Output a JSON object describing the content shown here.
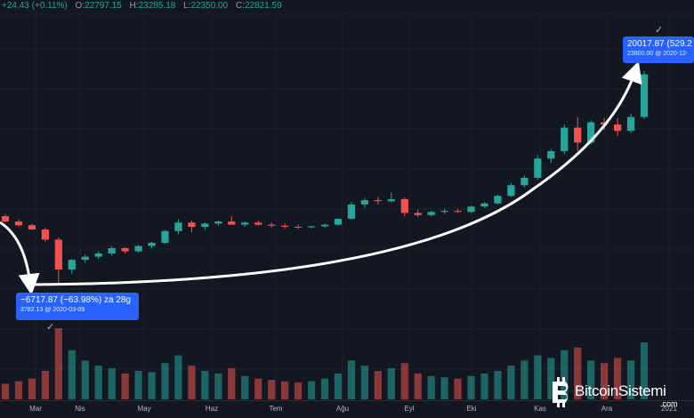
{
  "header": {
    "change": "+24.43 (+0.11%)",
    "open_label": "O:",
    "open": "22797.15",
    "high_label": "H:",
    "high": "23285.18",
    "low_label": "L:",
    "low": "22350.00",
    "close_label": "C:",
    "close": "22821.59"
  },
  "callouts": {
    "start_line1": "−6717.87 (−63.98%) za 28g",
    "start_line2": "3782.13 @ 2020-03-09",
    "end_line1": "20017.87 (529.2",
    "end_line2": "23800.00 @ 2020-12-"
  },
  "x_axis": {
    "labels": [
      "Mar",
      "Nis",
      "May",
      "Haz",
      "Tem",
      "Ağu",
      "Eyl",
      "Eki",
      "Kas",
      "Ara",
      "2021"
    ]
  },
  "watermark": {
    "name": "BitcoinSistemi",
    "tld": ".com"
  },
  "colors": {
    "background": "#131722",
    "up": "#26a69a",
    "down": "#ef5350",
    "callout": "#2962ff",
    "arrow": "#ffffff"
  },
  "chart_data": {
    "type": "candlestick",
    "title": "",
    "xlabel": "",
    "ylabel": "",
    "x_range": [
      "2020-02",
      "2021-01"
    ],
    "y_range": [
      3500,
      24500
    ],
    "grid": true,
    "series": [
      {
        "values": [
          [
            10200,
            10400,
            9600,
            9700
          ],
          [
            9700,
            9900,
            9200,
            9350
          ],
          [
            9350,
            9500,
            8900,
            8950
          ],
          [
            8950,
            9100,
            7800,
            8000
          ],
          [
            8000,
            8200,
            3782,
            5200
          ],
          [
            5200,
            6200,
            4800,
            6100
          ],
          [
            6100,
            6600,
            5800,
            6400
          ],
          [
            6400,
            6900,
            6200,
            6700
          ],
          [
            6700,
            7400,
            6500,
            7200
          ],
          [
            7200,
            7300,
            6700,
            6900
          ],
          [
            6900,
            7500,
            6800,
            7400
          ],
          [
            7400,
            7800,
            7200,
            7700
          ],
          [
            7700,
            8900,
            7600,
            8800
          ],
          [
            8800,
            9900,
            8500,
            9600
          ],
          [
            9600,
            9800,
            8700,
            9200
          ],
          [
            9200,
            9600,
            8900,
            9500
          ],
          [
            9500,
            9800,
            9300,
            9700
          ],
          [
            9700,
            10200,
            9500,
            9400
          ],
          [
            9400,
            9700,
            9200,
            9600
          ],
          [
            9600,
            9800,
            9300,
            9400
          ],
          [
            9400,
            9600,
            9100,
            9300
          ],
          [
            9300,
            9500,
            9000,
            9200
          ],
          [
            9200,
            9400,
            9000,
            9150
          ],
          [
            9150,
            9300,
            9050,
            9250
          ],
          [
            9250,
            9500,
            9100,
            9400
          ],
          [
            9400,
            10000,
            9300,
            9950
          ],
          [
            9950,
            11500,
            9900,
            11300
          ],
          [
            11300,
            11900,
            11000,
            11700
          ],
          [
            11700,
            12000,
            11300,
            11600
          ],
          [
            11600,
            12400,
            11500,
            11800
          ],
          [
            11800,
            11900,
            10200,
            10500
          ],
          [
            10500,
            10800,
            10100,
            10300
          ],
          [
            10300,
            10700,
            10200,
            10600
          ],
          [
            10600,
            10900,
            10400,
            10700
          ],
          [
            10700,
            10900,
            10500,
            10600
          ],
          [
            10600,
            11200,
            10500,
            11100
          ],
          [
            11100,
            11500,
            11000,
            11400
          ],
          [
            11400,
            12200,
            11300,
            12100
          ],
          [
            12100,
            13300,
            12000,
            13100
          ],
          [
            13100,
            14000,
            12900,
            13800
          ],
          [
            13800,
            15900,
            13600,
            15600
          ],
          [
            15600,
            16500,
            15200,
            16300
          ],
          [
            16300,
            18800,
            16000,
            18500
          ],
          [
            18500,
            19500,
            16300,
            17100
          ],
          [
            17100,
            19200,
            16900,
            19000
          ],
          [
            19000,
            19400,
            18300,
            18800
          ],
          [
            18800,
            19400,
            17700,
            18200
          ],
          [
            18200,
            19800,
            18000,
            19500
          ],
          [
            19500,
            23800,
            19300,
            23500
          ]
        ]
      }
    ],
    "volume": [
      12,
      14,
      16,
      22,
      55,
      38,
      30,
      26,
      24,
      20,
      22,
      21,
      28,
      34,
      26,
      22,
      20,
      24,
      18,
      16,
      15,
      14,
      13,
      14,
      16,
      20,
      30,
      26,
      22,
      24,
      28,
      20,
      18,
      17,
      16,
      18,
      20,
      22,
      26,
      30,
      34,
      32,
      38,
      40,
      30,
      28,
      32,
      30,
      44
    ],
    "annotations": [
      {
        "text": "−6717.87 (−63.98%) za 28g",
        "x": "2020-03-12"
      },
      {
        "text": "20017.87 (529.2",
        "x": "2020-12-17"
      }
    ]
  }
}
